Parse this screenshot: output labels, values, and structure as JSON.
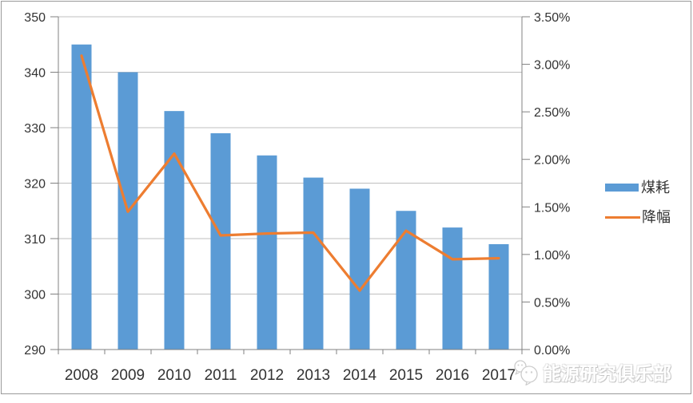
{
  "chart_data": {
    "type": "bar",
    "subtype": "bar-line-combo",
    "title": "",
    "categories": [
      "2008",
      "2009",
      "2010",
      "2011",
      "2012",
      "2013",
      "2014",
      "2015",
      "2016",
      "2017"
    ],
    "series": [
      {
        "name": "煤耗",
        "type": "bar",
        "axis": "left",
        "color": "#5B9BD5",
        "values": [
          345,
          340,
          333,
          329,
          325,
          321,
          319,
          315,
          312,
          309
        ]
      },
      {
        "name": "降幅",
        "type": "line",
        "axis": "right",
        "color": "#ED7D31",
        "values": [
          3.09,
          1.45,
          2.06,
          1.2,
          1.22,
          1.23,
          0.62,
          1.25,
          0.95,
          0.96
        ]
      }
    ],
    "left_axis": {
      "min": 290,
      "max": 350,
      "step": 10,
      "tick_labels": [
        "290",
        "300",
        "310",
        "320",
        "330",
        "340",
        "350"
      ]
    },
    "right_axis": {
      "min": 0,
      "max": 3.5,
      "step": 0.5,
      "tick_labels": [
        "0.00%",
        "0.50%",
        "1.00%",
        "1.50%",
        "2.00%",
        "2.50%",
        "3.00%",
        "3.50%"
      ]
    },
    "grid": true,
    "legend_position": "right",
    "gridline_color": "#BFBFBF",
    "axis_line_color": "#808080"
  },
  "legend": {
    "bar_label": "煤耗",
    "line_label": "降幅"
  },
  "watermark": {
    "icon": "chat-bubbles-icon",
    "text": "能源研究俱乐部"
  },
  "colors": {
    "bar": "#5B9BD5",
    "line": "#ED7D31",
    "text": "#333333",
    "frame_border": "#9a9a9a"
  }
}
